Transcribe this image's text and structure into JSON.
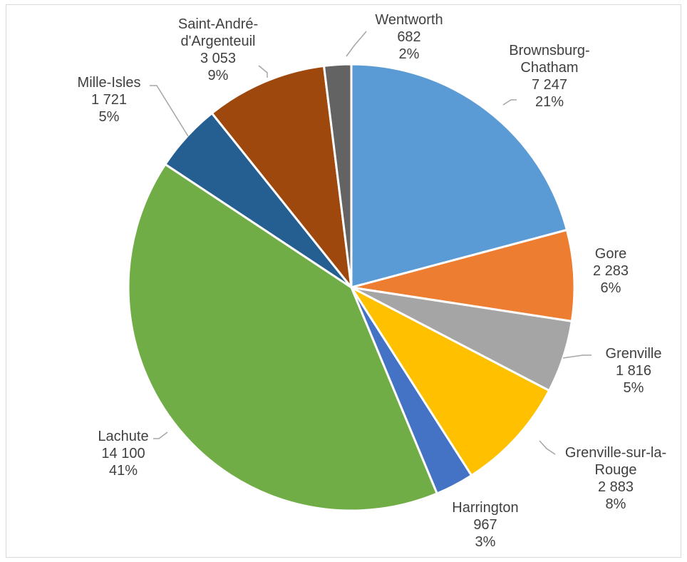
{
  "chart_data": {
    "type": "pie",
    "title": "",
    "start_angle_deg": 0,
    "direction": "clockwise",
    "slices": [
      {
        "lines": [
          "Brownsburg-",
          "Chatham"
        ],
        "value_label": "7 247",
        "percent_label": "21%",
        "value": 7247,
        "color": "#5b9bd5"
      },
      {
        "lines": [
          "Gore"
        ],
        "value_label": "2 283",
        "percent_label": "6%",
        "value": 2283,
        "color": "#ed7d31"
      },
      {
        "lines": [
          "Grenville"
        ],
        "value_label": "1 816",
        "percent_label": "5%",
        "value": 1816,
        "color": "#a5a5a5"
      },
      {
        "lines": [
          "Grenville-sur-la-",
          "Rouge"
        ],
        "value_label": "2 883",
        "percent_label": "8%",
        "value": 2883,
        "color": "#ffc000"
      },
      {
        "lines": [
          "Harrington"
        ],
        "value_label": "967",
        "percent_label": "3%",
        "value": 967,
        "color": "#4472c4"
      },
      {
        "lines": [
          "Lachute"
        ],
        "value_label": "14 100",
        "percent_label": "41%",
        "value": 14100,
        "color": "#70ad47"
      },
      {
        "lines": [
          "Mille-Isles"
        ],
        "value_label": "1 721",
        "percent_label": "5%",
        "value": 1721,
        "color": "#255e91"
      },
      {
        "lines": [
          "Saint-André-",
          "d'Argenteuil"
        ],
        "value_label": "3 053",
        "percent_label": "9%",
        "value": 3053,
        "color": "#9e480e"
      },
      {
        "lines": [
          "Wentworth"
        ],
        "value_label": "682",
        "percent_label": "2%",
        "value": 682,
        "color": "#636363"
      }
    ],
    "legend": "none",
    "data_labels": "outside-with-leader-lines"
  }
}
